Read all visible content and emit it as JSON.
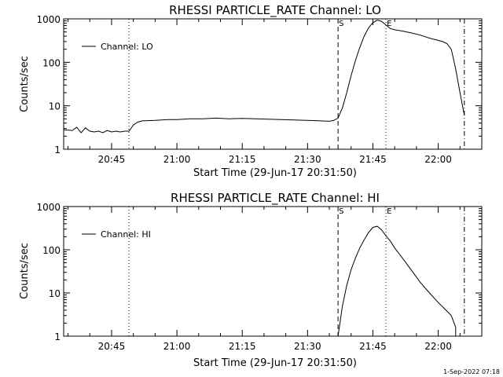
{
  "footer": {
    "timestamp": "1-Sep-2022 07:18"
  },
  "chart_data": [
    {
      "type": "line",
      "title": "RHESSI PARTICLE_RATE Channel: LO",
      "xlabel": "Start Time (29-Jun-17 20:31:50)",
      "ylabel": "Counts/sec",
      "yscale": "log",
      "ylim": [
        1,
        1000
      ],
      "xlim": [
        "20:34",
        "22:10"
      ],
      "x_ticks": [
        "20:45",
        "21:00",
        "21:15",
        "21:30",
        "21:45",
        "22:00"
      ],
      "y_ticks": [
        "1",
        "10",
        "100",
        "1000"
      ],
      "legend": {
        "position": "top-left",
        "entries": [
          "Channel: LO"
        ]
      },
      "markers": [
        {
          "time": "20:49",
          "style": "dotted",
          "label": ""
        },
        {
          "time": "21:37",
          "style": "dashed",
          "label": "S"
        },
        {
          "time": "21:48",
          "style": "dotted",
          "label": "E"
        },
        {
          "time": "22:06",
          "style": "dashdot",
          "label": ""
        }
      ],
      "series": [
        {
          "name": "Channel: LO",
          "points": [
            [
              "20:34",
              2.8
            ],
            [
              "20:36",
              2.7
            ],
            [
              "20:37",
              3.2
            ],
            [
              "20:38",
              2.4
            ],
            [
              "20:39",
              3.1
            ],
            [
              "20:40",
              2.6
            ],
            [
              "20:41",
              2.5
            ],
            [
              "20:42",
              2.6
            ],
            [
              "20:43",
              2.4
            ],
            [
              "20:44",
              2.7
            ],
            [
              "20:45",
              2.5
            ],
            [
              "20:46",
              2.6
            ],
            [
              "20:47",
              2.5
            ],
            [
              "20:48",
              2.6
            ],
            [
              "20:49",
              2.6
            ],
            [
              "20:50",
              3.6
            ],
            [
              "20:51",
              4.2
            ],
            [
              "20:52",
              4.5
            ],
            [
              "20:55",
              4.6
            ],
            [
              "20:58",
              4.8
            ],
            [
              "21:00",
              4.8
            ],
            [
              "21:03",
              5.0
            ],
            [
              "21:06",
              5.0
            ],
            [
              "21:09",
              5.2
            ],
            [
              "21:12",
              5.0
            ],
            [
              "21:15",
              5.1
            ],
            [
              "21:18",
              5.0
            ],
            [
              "21:21",
              4.9
            ],
            [
              "21:24",
              4.8
            ],
            [
              "21:27",
              4.7
            ],
            [
              "21:30",
              4.6
            ],
            [
              "21:33",
              4.5
            ],
            [
              "21:35",
              4.4
            ],
            [
              "21:36",
              4.6
            ],
            [
              "21:37",
              5.2
            ],
            [
              "21:38",
              9
            ],
            [
              "21:39",
              20
            ],
            [
              "21:40",
              50
            ],
            [
              "21:41",
              110
            ],
            [
              "21:42",
              220
            ],
            [
              "21:43",
              400
            ],
            [
              "21:44",
              620
            ],
            [
              "21:45",
              820
            ],
            [
              "21:46",
              930
            ],
            [
              "21:47",
              880
            ],
            [
              "21:48",
              720
            ],
            [
              "21:49",
              600
            ],
            [
              "21:50",
              560
            ],
            [
              "21:52",
              520
            ],
            [
              "21:54",
              470
            ],
            [
              "21:56",
              420
            ],
            [
              "21:58",
              360
            ],
            [
              "22:00",
              320
            ],
            [
              "22:01",
              300
            ],
            [
              "22:02",
              270
            ],
            [
              "22:03",
              200
            ],
            [
              "22:04",
              70
            ],
            [
              "22:05",
              20
            ],
            [
              "22:06",
              6
            ]
          ]
        }
      ]
    },
    {
      "type": "line",
      "title": "RHESSI PARTICLE_RATE Channel: HI",
      "xlabel": "Start Time (29-Jun-17 20:31:50)",
      "ylabel": "Counts/sec",
      "yscale": "log",
      "ylim": [
        1,
        1000
      ],
      "xlim": [
        "20:34",
        "22:10"
      ],
      "x_ticks": [
        "20:45",
        "21:00",
        "21:15",
        "21:30",
        "21:45",
        "22:00"
      ],
      "y_ticks": [
        "1",
        "10",
        "100",
        "1000"
      ],
      "legend": {
        "position": "top-left",
        "entries": [
          "Channel: HI"
        ]
      },
      "markers": [
        {
          "time": "20:49",
          "style": "dotted",
          "label": ""
        },
        {
          "time": "21:37",
          "style": "dashed",
          "label": "S"
        },
        {
          "time": "21:48",
          "style": "dotted",
          "label": "E"
        },
        {
          "time": "22:06",
          "style": "dashdot",
          "label": ""
        }
      ],
      "series": [
        {
          "name": "Channel: HI",
          "points": [
            [
              "21:37",
              1
            ],
            [
              "21:38",
              5
            ],
            [
              "21:39",
              15
            ],
            [
              "21:40",
              35
            ],
            [
              "21:41",
              65
            ],
            [
              "21:42",
              110
            ],
            [
              "21:43",
              170
            ],
            [
              "21:44",
              250
            ],
            [
              "21:45",
              330
            ],
            [
              "21:46",
              350
            ],
            [
              "21:47",
              290
            ],
            [
              "21:48",
              210
            ],
            [
              "21:49",
              160
            ],
            [
              "21:50",
              110
            ],
            [
              "21:52",
              60
            ],
            [
              "21:54",
              32
            ],
            [
              "21:56",
              17
            ],
            [
              "21:58",
              10
            ],
            [
              "22:00",
              6
            ],
            [
              "22:02",
              3.8
            ],
            [
              "22:03",
              3.0
            ],
            [
              "22:04",
              1.6
            ],
            [
              "22:04",
              1
            ]
          ]
        }
      ]
    }
  ]
}
